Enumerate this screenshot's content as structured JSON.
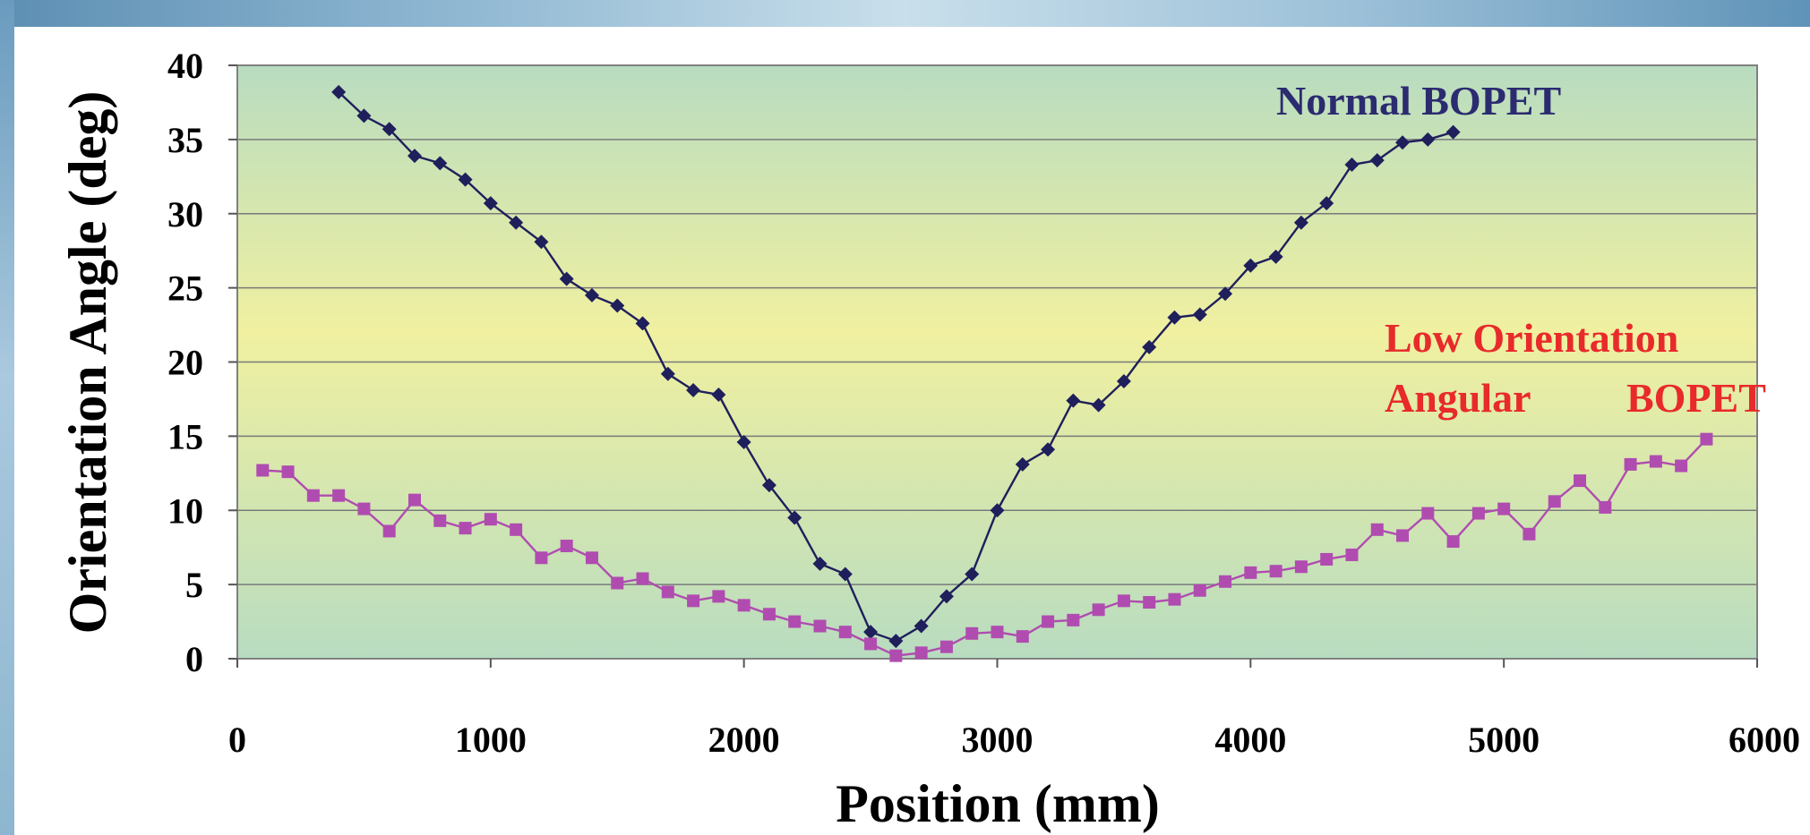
{
  "chart_data": {
    "type": "line",
    "xlabel": "Position (mm)",
    "ylabel": "Orientation Angle (deg)",
    "xlim": [
      0,
      6000
    ],
    "ylim": [
      0,
      40
    ],
    "x_ticks": [
      "0",
      "1000",
      "2000",
      "3000",
      "4000",
      "5000",
      "6000"
    ],
    "y_ticks": [
      "0",
      "5",
      "10",
      "15",
      "20",
      "25",
      "30",
      "35",
      "40"
    ],
    "grid": "horizontal",
    "plot_background": "vertical gradient green-yellow-green",
    "colors": {
      "normal": "#1f1f5c",
      "low": "#b04cb0",
      "low_label": "#e82a2a",
      "normal_label": "#2b2b70",
      "plot_bg_edge": "#b8dcc0",
      "plot_bg_center": "#f0f0a0"
    },
    "annotations": {
      "normal": "Normal BOPET",
      "low_line1": "Low Orientation",
      "low_line2_a": "Angular",
      "low_line2_b": "BOPET"
    },
    "series": [
      {
        "name": "Normal BOPET",
        "marker": "diamond",
        "x": [
          400,
          500,
          600,
          700,
          800,
          900,
          1000,
          1100,
          1200,
          1300,
          1400,
          1500,
          1600,
          1700,
          1800,
          1900,
          2000,
          2100,
          2200,
          2300,
          2400,
          2500,
          2600,
          2700,
          2800,
          2900,
          3000,
          3100,
          3200,
          3300,
          3400,
          3500,
          3600,
          3700,
          3800,
          3900,
          4000,
          4100,
          4200,
          4300,
          4400,
          4500,
          4600,
          4700,
          4800
        ],
        "y": [
          38.2,
          36.6,
          35.7,
          33.9,
          33.4,
          32.3,
          30.7,
          29.4,
          28.1,
          25.6,
          24.5,
          23.8,
          22.6,
          19.2,
          18.1,
          17.8,
          14.6,
          11.7,
          9.5,
          6.4,
          5.7,
          1.8,
          1.2,
          2.2,
          4.2,
          5.7,
          10.0,
          13.1,
          14.1,
          17.4,
          17.1,
          18.7,
          21.0,
          23.0,
          23.2,
          24.6,
          26.5,
          27.1,
          29.4,
          30.7,
          33.3,
          33.6,
          34.8,
          35.0,
          35.5
        ]
      },
      {
        "name": "Low Orientation Angular BOPET",
        "marker": "square",
        "x": [
          100,
          200,
          300,
          400,
          500,
          600,
          700,
          800,
          900,
          1000,
          1100,
          1200,
          1300,
          1400,
          1500,
          1600,
          1700,
          1800,
          1900,
          2000,
          2100,
          2200,
          2300,
          2400,
          2500,
          2600,
          2700,
          2800,
          2900,
          3000,
          3100,
          3200,
          3300,
          3400,
          3500,
          3600,
          3700,
          3800,
          3900,
          4000,
          4100,
          4200,
          4300,
          4400,
          4500,
          4600,
          4700,
          4800,
          4900,
          5000,
          5100,
          5200,
          5300,
          5400,
          5500,
          5600,
          5700,
          5800
        ],
        "y": [
          12.7,
          12.6,
          11.0,
          11.0,
          10.1,
          8.6,
          10.7,
          9.3,
          8.8,
          9.4,
          8.7,
          6.8,
          7.6,
          6.8,
          5.1,
          5.4,
          4.5,
          3.9,
          4.2,
          3.6,
          3.0,
          2.5,
          2.2,
          1.8,
          1.0,
          0.2,
          0.4,
          0.8,
          1.7,
          1.8,
          1.5,
          2.5,
          2.6,
          3.3,
          3.9,
          3.8,
          4.0,
          4.6,
          5.2,
          5.8,
          5.9,
          6.2,
          6.7,
          7.0,
          8.7,
          8.3,
          9.8,
          7.9,
          9.8,
          10.1,
          8.4,
          10.6,
          12.0,
          10.2,
          13.1,
          13.3,
          13.0,
          14.8
        ]
      }
    ]
  }
}
